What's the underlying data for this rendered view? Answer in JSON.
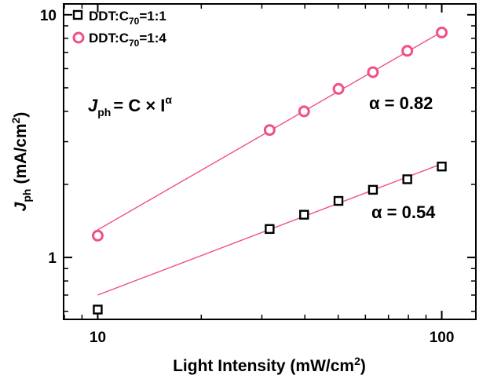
{
  "chart_data": {
    "type": "scatter",
    "x_scale": "log",
    "y_scale": "log",
    "xlim": [
      8,
      125
    ],
    "ylim": [
      0.56,
      11
    ],
    "x_ticks": [
      10,
      100
    ],
    "x_tick_labels": [
      "10",
      "100"
    ],
    "y_ticks": [
      1,
      10
    ],
    "y_tick_labels": [
      "1",
      "10"
    ],
    "xlabel": "Light Intensity (mW/cm²)",
    "ylabel": "J_ph (mA/cm²)",
    "ylabel_parts": {
      "main": "J",
      "sub": "ph",
      "units": "(mA/cm",
      "sup": "2",
      "close": ")"
    },
    "xlabel_parts": {
      "main": "Light Intensity (mW/cm",
      "sup": "2",
      "close": ")"
    },
    "legend_position": "top-left",
    "equation": {
      "lhs": "J",
      "lhs_sub": "ph",
      "rhs": "= C × I",
      "rhs_sup": "α"
    },
    "series": [
      {
        "name": "DDT:C70=1:1",
        "label_parts": {
          "pre": "DDT:C",
          "sub": "70",
          "post": "=1:1"
        },
        "marker": "square",
        "marker_color": "#000000",
        "fit_color": "#f0508a",
        "x": [
          10,
          31.6,
          39.8,
          50.1,
          63.1,
          79.4,
          100
        ],
        "y": [
          0.61,
          1.31,
          1.5,
          1.71,
          1.9,
          2.1,
          2.37
        ],
        "fit": {
          "alpha": 0.54,
          "label": "α = 0.54",
          "x": [
            10,
            100
          ],
          "y": [
            0.7,
            2.43
          ]
        }
      },
      {
        "name": "DDT:C70=1:4",
        "label_parts": {
          "pre": "DDT:C",
          "sub": "70",
          "post": "=1:4"
        },
        "marker": "circle",
        "marker_color": "#f0508a",
        "fit_color": "#f0508a",
        "x": [
          10,
          31.6,
          39.8,
          50.1,
          63.1,
          79.4,
          100
        ],
        "y": [
          1.23,
          3.35,
          4.0,
          4.95,
          5.8,
          7.1,
          8.45
        ],
        "fit": {
          "alpha": 0.82,
          "label": "α = 0.82",
          "x": [
            10,
            100
          ],
          "y": [
            1.3,
            8.5
          ]
        }
      }
    ]
  }
}
